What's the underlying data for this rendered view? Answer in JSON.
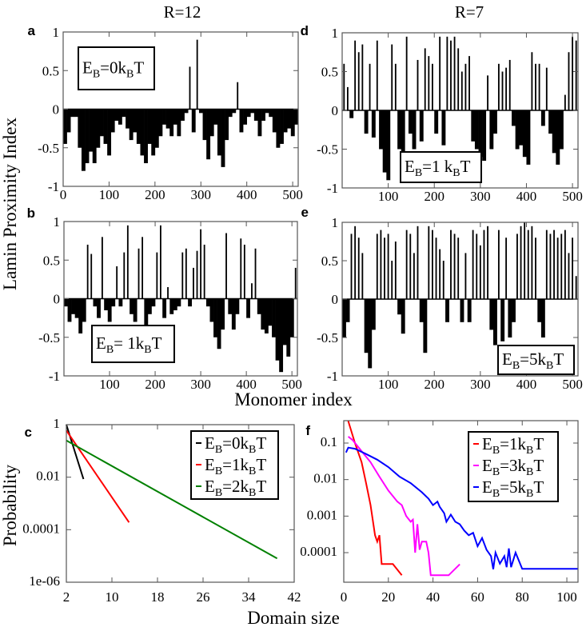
{
  "titles": {
    "left": "R=12",
    "right": "R=7"
  },
  "axis_labels": {
    "ylabel_top": "Lamin Proximity Index",
    "xlabel_top": "Monomer index",
    "ylabel_bottom": "Probability",
    "xlabel_bottom": "Domain size"
  },
  "chart_data": [
    {
      "id": "a",
      "type": "bar",
      "panel_label": "a",
      "xlim": [
        0,
        512
      ],
      "ylim": [
        -1,
        1
      ],
      "xticks": [
        "0",
        "100",
        "200",
        "300",
        "400",
        "500"
      ],
      "yticks": [
        "1",
        "0.5",
        "0",
        "-0.5",
        "-1"
      ],
      "legend": {
        "pre": "E",
        "s1": "B",
        "mid": "=0k",
        "s2": "B",
        "post": "T"
      },
      "x_step": 8,
      "values": [
        -0.45,
        -0.3,
        -0.1,
        -0.1,
        -0.5,
        -0.8,
        -0.7,
        -0.55,
        -0.7,
        -0.5,
        -0.35,
        -0.45,
        -0.6,
        -0.3,
        -0.15,
        -0.2,
        -0.1,
        -0.25,
        -0.4,
        -0.3,
        -0.45,
        -0.6,
        -0.7,
        -0.45,
        -0.6,
        -0.5,
        -0.35,
        -0.2,
        -0.25,
        -0.35,
        -0.2,
        -0.35,
        -0.15,
        -0.05,
        0.55,
        -0.3,
        0.9,
        -0.05,
        -0.4,
        -0.65,
        -0.35,
        -0.2,
        -0.6,
        -0.75,
        -0.4,
        -0.1,
        -0.05,
        0.35,
        -0.3,
        -0.2,
        -0.1,
        -0.05,
        -0.15,
        -0.35,
        -0.15,
        -0.05,
        -0.1,
        -0.3,
        -0.5,
        -0.45,
        -0.3,
        -0.25,
        -0.35,
        -0.2
      ]
    },
    {
      "id": "b",
      "type": "bar",
      "panel_label": "b",
      "xlim": [
        0,
        512
      ],
      "ylim": [
        -1,
        1
      ],
      "xticks": [
        "100",
        "200",
        "300",
        "400",
        "500"
      ],
      "yticks": [
        "1",
        "0.5",
        "0",
        "-0.5",
        "-1"
      ],
      "legend": {
        "pre": "E",
        "s1": "B",
        "mid": "= 1k",
        "s2": "B",
        "post": "T"
      },
      "x_step": 8,
      "values": [
        -0.1,
        -0.3,
        -0.2,
        -0.25,
        -0.45,
        -0.3,
        0.7,
        0.58,
        -0.1,
        -0.25,
        0.8,
        -0.15,
        -0.3,
        -0.1,
        0.42,
        -0.1,
        0.6,
        0.95,
        -0.2,
        -0.3,
        0.65,
        0.8,
        -0.35,
        -0.2,
        -0.1,
        0.6,
        0.95,
        -0.25,
        0.15,
        -0.2,
        -0.15,
        -0.1,
        0.6,
        0.65,
        -0.1,
        0.4,
        0.62,
        0.9,
        0.7,
        -0.1,
        -0.3,
        -0.5,
        -0.65,
        -0.4,
        0.85,
        -0.2,
        -0.4,
        -0.2,
        0.78,
        0.7,
        -0.25,
        0.2,
        0.65,
        -0.2,
        -0.4,
        -0.45,
        -0.35,
        -0.5,
        -0.8,
        -0.95,
        -0.6,
        -0.75,
        -0.5,
        0.4
      ]
    },
    {
      "id": "d",
      "type": "bar",
      "panel_label": "d",
      "xlim": [
        0,
        512
      ],
      "ylim": [
        -1,
        1
      ],
      "xticks": [
        "100",
        "200",
        "300",
        "400",
        "500"
      ],
      "yticks": [
        "1",
        "0.5",
        "0",
        "-0.5",
        "-1"
      ],
      "legend": {
        "pre": "E",
        "s1": "B",
        "mid": "=1 k",
        "s2": "B",
        "post": "T"
      },
      "x_step": 8,
      "values": [
        0.6,
        0.3,
        -0.1,
        0.9,
        0.75,
        0.85,
        -0.3,
        0.6,
        -0.35,
        0.9,
        -0.5,
        -0.8,
        -0.9,
        0.85,
        0.6,
        -0.5,
        -0.7,
        0.95,
        -0.3,
        -0.5,
        0.65,
        -0.4,
        0.8,
        0.7,
        0.6,
        -0.3,
        0.95,
        -0.45,
        0.95,
        0.9,
        0.95,
        0.8,
        0.5,
        0.6,
        0.7,
        -0.4,
        -0.5,
        -0.6,
        -0.65,
        0.45,
        -0.5,
        -0.3,
        0.6,
        0.5,
        0.55,
        0.65,
        -0.2,
        -0.5,
        -0.45,
        -0.6,
        -0.7,
        0.75,
        0.6,
        0.6,
        -0.2,
        0.55,
        -0.3,
        -0.55,
        -0.7,
        -0.5,
        0.2,
        0.75,
        0.95,
        0.9
      ]
    },
    {
      "id": "e",
      "type": "bar",
      "panel_label": "e",
      "xlim": [
        0,
        512
      ],
      "ylim": [
        -1,
        1
      ],
      "xticks": [
        "100",
        "200",
        "300",
        "400",
        "500"
      ],
      "yticks": [
        "1",
        "0.5",
        "0",
        "-0.5",
        "-1"
      ],
      "legend": {
        "pre": "E",
        "s1": "B",
        "mid": "=5k",
        "s2": "B",
        "post": "T"
      },
      "x_step": 8,
      "values": [
        -0.5,
        -0.3,
        0.85,
        0.95,
        0.8,
        0.6,
        -0.7,
        -0.9,
        -0.4,
        0.85,
        0.9,
        0.8,
        0.85,
        0.5,
        0.75,
        -0.2,
        -0.45,
        0.9,
        0.85,
        0.6,
        0.95,
        -0.3,
        -0.7,
        0.95,
        0.9,
        0.8,
        0.65,
        0.5,
        -0.3,
        0.9,
        0.85,
        0.8,
        -0.3,
        0.6,
        -0.3,
        0.9,
        0.85,
        0.7,
        0.9,
        0.95,
        -0.4,
        -0.6,
        0.9,
        -0.55,
        0.8,
        -0.5,
        -0.3,
        0.85,
        0.95,
        1.0,
        0.9,
        0.95,
        0.8,
        -0.3,
        -0.5,
        0.9,
        0.85,
        0.9,
        0.8,
        0.85,
        0.9,
        0.6,
        0.8,
        0.3
      ]
    },
    {
      "id": "c",
      "type": "line",
      "panel_label": "c",
      "yscale": "log",
      "xlim": [
        2,
        42
      ],
      "ylim": [
        1e-06,
        1
      ],
      "xticks": [
        2,
        10,
        18,
        26,
        34,
        42
      ],
      "yticks": [
        {
          "v": 1,
          "label": "1"
        },
        {
          "v": 0.01,
          "label": "0.01"
        },
        {
          "v": 0.0001,
          "label": "0.0001"
        },
        {
          "v": 1e-06,
          "label": "1e-06"
        }
      ],
      "series": [
        {
          "legend": {
            "pre": "E",
            "s1": "B",
            "mid": "=0k",
            "s2": "B",
            "post": "T"
          },
          "color": "#000000",
          "x": [
            2,
            5
          ],
          "y": [
            1,
            0.0085
          ]
        },
        {
          "legend": {
            "pre": "E",
            "s1": "B",
            "mid": "=1k",
            "s2": "B",
            "post": "T"
          },
          "color": "#ff0000",
          "x": [
            2,
            13
          ],
          "y": [
            0.6,
            0.00019
          ]
        },
        {
          "legend": {
            "pre": "E",
            "s1": "B",
            "mid": "=2k",
            "s2": "B",
            "post": "T"
          },
          "color": "#008000",
          "x": [
            2,
            39
          ],
          "y": [
            0.25,
            8e-06
          ]
        }
      ]
    },
    {
      "id": "f",
      "type": "line",
      "panel_label": "f",
      "yscale": "log",
      "xlim": [
        0,
        105
      ],
      "ylim": [
        1.55e-05,
        0.41
      ],
      "xticks": [
        0,
        20,
        40,
        60,
        80,
        100
      ],
      "yticks": [
        {
          "v": 0.1,
          "label": "0.1"
        },
        {
          "v": 0.01,
          "label": "0.01"
        },
        {
          "v": 0.001,
          "label": "0.001"
        },
        {
          "v": 0.0001,
          "label": "0.0001"
        }
      ],
      "series": [
        {
          "legend": {
            "pre": "E",
            "s1": "B",
            "mid": "=1k",
            "s2": "B",
            "post": "T"
          },
          "color": "#ff0000",
          "x": [
            2,
            5,
            8,
            10,
            12,
            14,
            15,
            16,
            17,
            22,
            26
          ],
          "y": [
            0.4,
            0.1,
            0.03,
            0.008,
            0.002,
            0.0003,
            0.0002,
            0.0003,
            4.9e-05,
            4.9e-05,
            2.4e-05
          ]
        },
        {
          "legend": {
            "pre": "E",
            "s1": "B",
            "mid": "=3k",
            "s2": "B",
            "post": "T"
          },
          "color": "#ff00ff",
          "x": [
            2,
            4,
            8,
            12,
            16,
            20,
            24,
            26,
            28,
            30,
            31,
            32,
            33,
            34,
            35,
            37,
            38,
            39,
            47,
            52
          ],
          "y": [
            0.15,
            0.12,
            0.06,
            0.03,
            0.012,
            0.005,
            0.0025,
            0.002,
            0.001,
            0.0007,
            0.0008,
            0.0001,
            0.0006,
            0.00012,
            0.0002,
            0.0002,
            0.0001,
            2.4e-05,
            2.4e-05,
            4.8e-05
          ]
        },
        {
          "legend": {
            "pre": "E",
            "s1": "B",
            "mid": "=5k",
            "s2": "B",
            "post": "T"
          },
          "color": "#0000ff",
          "x": [
            1,
            2,
            5,
            10,
            15,
            20,
            25,
            30,
            35,
            38,
            40,
            42,
            43,
            45,
            46,
            48,
            50,
            52,
            54,
            56,
            58,
            60,
            62,
            64,
            66,
            67,
            68,
            70,
            72,
            73,
            74,
            75,
            77,
            80,
            105
          ],
          "y": [
            0.055,
            0.075,
            0.07,
            0.05,
            0.035,
            0.022,
            0.012,
            0.008,
            0.0045,
            0.003,
            0.002,
            0.0025,
            0.0018,
            0.0012,
            0.0007,
            0.0011,
            0.0007,
            0.0006,
            0.0004,
            0.0003,
            0.00035,
            0.00015,
            0.00025,
            0.00012,
            8e-05,
            3.5e-05,
            0.0001,
            5e-05,
            8e-05,
            4e-05,
            0.00013,
            4e-05,
            0.0001,
            3.6e-05,
            3.6e-05
          ]
        }
      ]
    }
  ]
}
